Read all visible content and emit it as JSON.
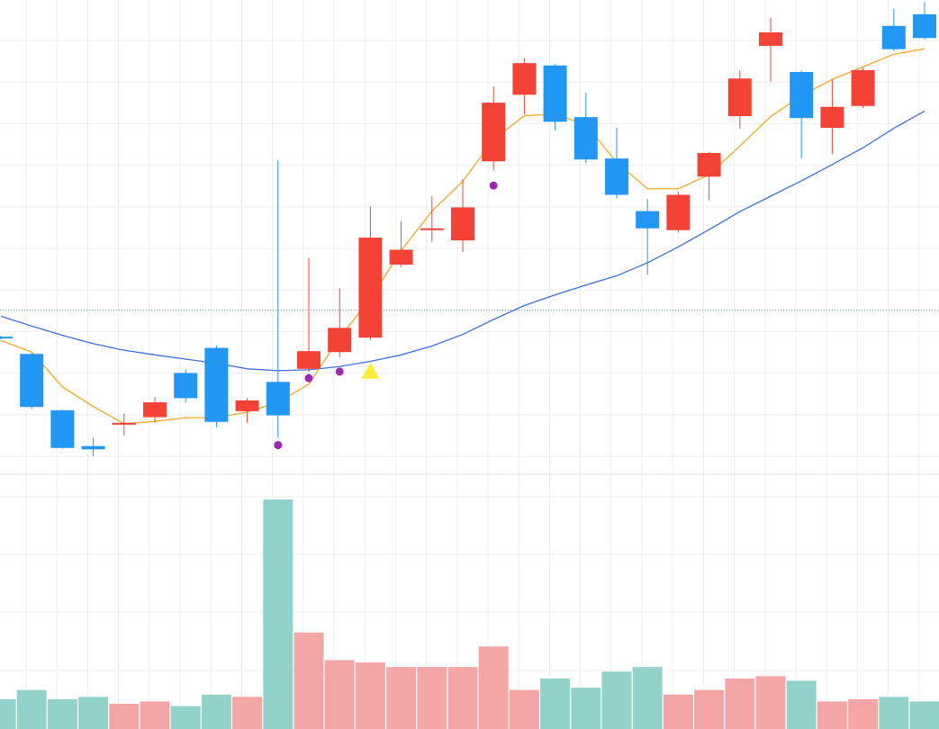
{
  "colors": {
    "up": "#f44336",
    "down": "#2196f3",
    "ma_short": "#f5a623",
    "ma_long": "#3f6fe0",
    "marker_dot": "#9c27b0",
    "marker_triangle": "#ffeb3b",
    "volume_up": "#f4a6a6",
    "volume_down": "#93d2ca",
    "grid": "#eeeeee",
    "price_line": "#5b8bb0"
  },
  "chart_data": {
    "type": "candlestick",
    "title": "",
    "xlabel": "",
    "ylabel": "",
    "price_ylim": [
      0,
      100
    ],
    "volume_ylim": [
      0,
      100
    ],
    "price_line_value": 37.2,
    "candles": [
      {
        "o": 31.5,
        "h": 31.7,
        "l": 30.9,
        "c": 31.2
      },
      {
        "o": 27.8,
        "h": 28.0,
        "l": 16.0,
        "c": 16.4
      },
      {
        "o": 15.7,
        "h": 15.8,
        "l": 7.4,
        "c": 7.6
      },
      {
        "o": 8.0,
        "h": 9.8,
        "l": 5.8,
        "c": 7.3
      },
      {
        "o": 12.6,
        "h": 15.0,
        "l": 10.3,
        "c": 13.0
      },
      {
        "o": 14.2,
        "h": 18.5,
        "l": 13.0,
        "c": 17.4
      },
      {
        "o": 23.7,
        "h": 24.5,
        "l": 17.4,
        "c": 18.3
      },
      {
        "o": 29.1,
        "h": 29.6,
        "l": 12.0,
        "c": 13.2
      },
      {
        "o": 15.5,
        "h": 18.3,
        "l": 13.0,
        "c": 17.8
      },
      {
        "o": 21.8,
        "h": 69.4,
        "l": 9.8,
        "c": 14.6
      },
      {
        "o": 24.6,
        "h": 48.5,
        "l": 24.0,
        "c": 28.4
      },
      {
        "o": 28.2,
        "h": 41.9,
        "l": 27.1,
        "c": 33.4
      },
      {
        "o": 31.3,
        "h": 59.5,
        "l": 30.8,
        "c": 52.8
      },
      {
        "o": 47.0,
        "h": 56.3,
        "l": 46.5,
        "c": 50.2
      },
      {
        "o": 54.4,
        "h": 61.7,
        "l": 51.9,
        "c": 54.8
      },
      {
        "o": 52.2,
        "h": 65.3,
        "l": 49.7,
        "c": 59.3
      },
      {
        "o": 69.2,
        "h": 85.3,
        "l": 67.3,
        "c": 81.8
      },
      {
        "o": 83.5,
        "h": 91.4,
        "l": 79.3,
        "c": 90.3
      },
      {
        "o": 89.8,
        "h": 90.1,
        "l": 75.8,
        "c": 77.7
      },
      {
        "o": 78.7,
        "h": 83.9,
        "l": 68.8,
        "c": 69.6
      },
      {
        "o": 69.8,
        "h": 76.4,
        "l": 61.2,
        "c": 62.0
      },
      {
        "o": 58.5,
        "h": 61.1,
        "l": 44.8,
        "c": 54.8
      },
      {
        "o": 54.4,
        "h": 62.7,
        "l": 53.9,
        "c": 62.0
      },
      {
        "o": 65.9,
        "h": 71.2,
        "l": 60.8,
        "c": 71.0
      },
      {
        "o": 78.9,
        "h": 88.7,
        "l": 76.2,
        "c": 87.0
      },
      {
        "o": 94.0,
        "h": 100.0,
        "l": 86.3,
        "c": 96.9
      },
      {
        "o": 88.4,
        "h": 88.7,
        "l": 69.8,
        "c": 78.5
      },
      {
        "o": 76.4,
        "h": 86.8,
        "l": 70.7,
        "c": 80.9
      },
      {
        "o": 81.1,
        "h": 89.3,
        "l": 80.6,
        "c": 88.8
      },
      {
        "o": 98.3,
        "h": 102.0,
        "l": 92.9,
        "c": 93.3
      },
      {
        "o": 100.8,
        "h": 103.4,
        "l": 95.4,
        "c": 95.7
      }
    ],
    "ma_short": [
      30.7,
      28.2,
      20.7,
      16.5,
      12.8,
      13.3,
      14.1,
      14.1,
      15.3,
      17.4,
      21.3,
      31.3,
      39.7,
      50.0,
      58.5,
      64.9,
      73.9,
      79.0,
      79.3,
      77.1,
      69.0,
      63.3,
      63.3,
      66.3,
      72.5,
      78.8,
      83.3,
      86.8,
      89.5,
      92.2,
      93.4
    ],
    "ma_long": [
      35.9,
      33.8,
      31.8,
      30.0,
      28.6,
      27.6,
      26.7,
      25.8,
      24.6,
      24.2,
      24.4,
      25.1,
      26.2,
      27.6,
      29.5,
      32.0,
      35.2,
      38.2,
      40.5,
      42.6,
      44.6,
      47.4,
      50.8,
      54.5,
      58.4,
      61.7,
      65.0,
      68.5,
      72.1,
      76.3,
      80.0
    ],
    "dots": [
      {
        "index": 9,
        "value": 8.2
      },
      {
        "index": 10,
        "value": 22.6
      },
      {
        "index": 11,
        "value": 24.0
      },
      {
        "index": 16,
        "value": 64.0
      }
    ],
    "triangles": [
      {
        "index": 12,
        "value": 24.0
      }
    ],
    "volumes": [
      13,
      17,
      13,
      14,
      11,
      12,
      10,
      15,
      14,
      100,
      42,
      30,
      29,
      27,
      27,
      27,
      36,
      17,
      22,
      18,
      25,
      27,
      15,
      17,
      22,
      23,
      21,
      12,
      13,
      14,
      12
    ]
  }
}
